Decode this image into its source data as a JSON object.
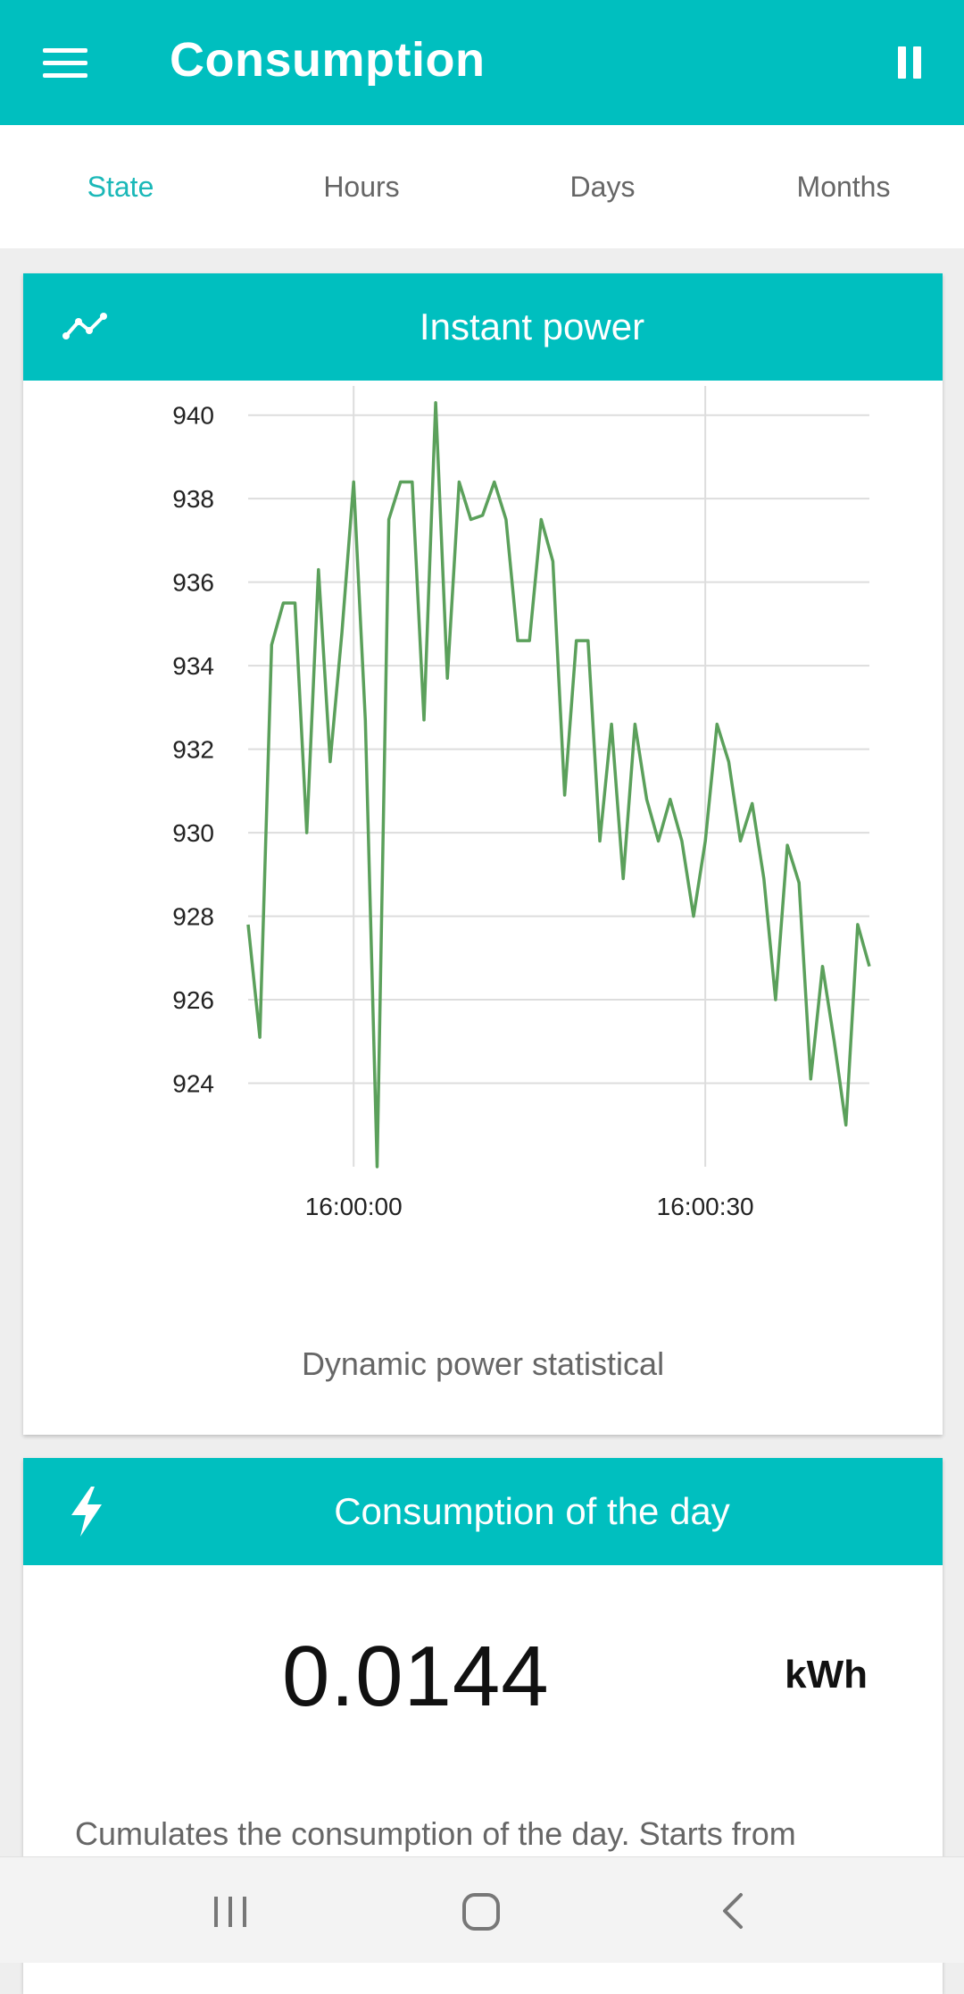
{
  "appbar": {
    "title": "Consumption",
    "menu_icon": "hamburger-menu-icon",
    "pause_icon": "pause-icon"
  },
  "tabs": [
    {
      "label": "State",
      "active": true
    },
    {
      "label": "Hours",
      "active": false
    },
    {
      "label": "Days",
      "active": false
    },
    {
      "label": "Months",
      "active": false
    }
  ],
  "instant_power": {
    "title": "Instant power",
    "icon": "line-chart-icon",
    "caption": "Dynamic power statistical"
  },
  "chart_data": {
    "type": "line",
    "title": "",
    "xlabel": "",
    "ylabel": "",
    "x_tick_labels": [
      "16:00:00",
      "16:00:30"
    ],
    "x_tick_positions": [
      9,
      39
    ],
    "y_ticks": [
      924,
      926,
      928,
      930,
      932,
      934,
      936,
      938,
      940
    ],
    "ylim": [
      922,
      940.4
    ],
    "grid": true,
    "legend": "none",
    "series": [
      {
        "color": "#5ba05b",
        "values": [
          927.8,
          925.1,
          934.5,
          935.5,
          935.5,
          930.0,
          936.3,
          931.7,
          934.8,
          938.4,
          932.7,
          922.0,
          937.5,
          938.4,
          938.4,
          932.7,
          940.3,
          933.7,
          938.4,
          937.5,
          937.6,
          938.4,
          937.5,
          934.6,
          934.6,
          937.5,
          936.5,
          930.9,
          934.6,
          934.6,
          929.8,
          932.6,
          928.9,
          932.6,
          930.8,
          929.8,
          930.8,
          929.8,
          928.0,
          929.8,
          932.6,
          931.7,
          929.8,
          930.7,
          928.9,
          926.0,
          929.7,
          928.8,
          924.1,
          926.8,
          925.0,
          923.0,
          927.8,
          926.8
        ]
      }
    ]
  },
  "day_consumption": {
    "title": "Consumption of the day",
    "icon": "lightning-bolt-icon",
    "value": "0.0144",
    "unit": "kWh",
    "description": "Cumulates the consumption of the day. Starts from"
  },
  "navbar": {
    "recent_icon": "recent-apps-icon",
    "home_icon": "home-icon",
    "back_icon": "back-icon"
  }
}
